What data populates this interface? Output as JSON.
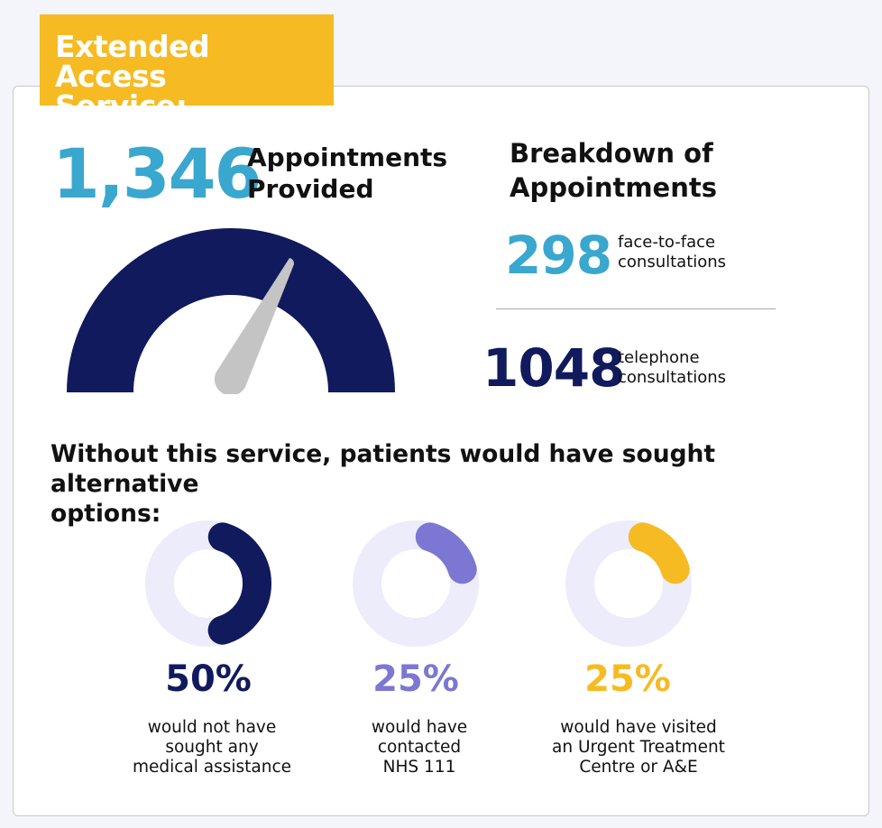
{
  "header": {
    "title_line1": "Extended Access",
    "title_line2": "Service:"
  },
  "total": {
    "value": "1,346",
    "label_line1": "Appointments",
    "label_line2": "Provided"
  },
  "breakdown": {
    "title_line1": "Breakdown of",
    "title_line2": "Appointments",
    "face_to_face": {
      "value": "298",
      "label_line1": "face-to-face",
      "label_line2": "consultations"
    },
    "telephone": {
      "value": "1048",
      "label_line1": "telephone",
      "label_line2": "consultations"
    }
  },
  "alternatives": {
    "heading_line1": "Without this service, patients would have sought alternative",
    "heading_line2": "options:",
    "items": [
      {
        "percent": "50%",
        "fraction": 0.5,
        "color": "#101a5c",
        "desc_line1": "would not have",
        "desc_line2": "sought any",
        "desc_line3": "medical assistance"
      },
      {
        "percent": "25%",
        "fraction": 0.25,
        "color": "#7b77d2",
        "desc_line1": "would have",
        "desc_line2": "contacted",
        "desc_line3": "NHS 111"
      },
      {
        "percent": "25%",
        "fraction": 0.25,
        "color": "#f6bb22",
        "desc_line1": "would have visited",
        "desc_line2": "an Urgent Treatment",
        "desc_line3": "Centre or A&E"
      }
    ]
  },
  "colors": {
    "accent_yellow": "#f6bb22",
    "accent_blue": "#3aa7cf",
    "navy": "#101a5c",
    "purple": "#7b77d2",
    "donut_track": "#ececfb",
    "needle": "#c4c4c4"
  }
}
